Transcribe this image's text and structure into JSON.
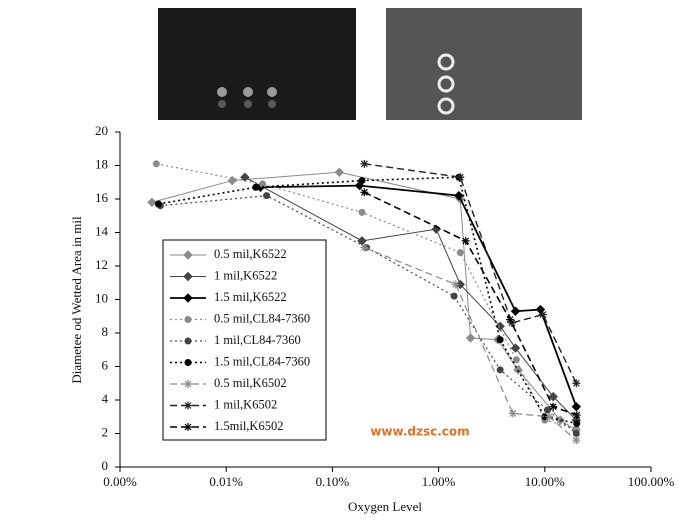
{
  "chart_data": {
    "type": "line",
    "xlabel": "Oxygen Level",
    "ylabel": "Diametee od Wetted Area in mil",
    "xscale": "log",
    "xlim": [
      0.001,
      100
    ],
    "xticks": [
      {
        "value": 0.001,
        "label": "0.00%"
      },
      {
        "value": 0.01,
        "label": "0.01%"
      },
      {
        "value": 0.1,
        "label": "0.10%"
      },
      {
        "value": 1,
        "label": "1.00%"
      },
      {
        "value": 10,
        "label": "10.00%"
      },
      {
        "value": 100,
        "label": "100.00%"
      }
    ],
    "ylim": [
      0,
      20
    ],
    "yticks": [
      0,
      2,
      4,
      6,
      8,
      10,
      12,
      14,
      16,
      18,
      20
    ],
    "grid": false,
    "legend": "lower left",
    "watermark": "www.dzsc.com",
    "series": [
      {
        "name": "0.5 mil,K6522",
        "color": "#8a8a8a",
        "dash": "solid",
        "marker": "diamond",
        "width": 1,
        "x": [
          0.002,
          0.0114,
          0.116,
          1.6,
          2.0,
          3.6,
          5.6,
          14,
          19.7
        ],
        "values": [
          15.8,
          17.1,
          17.6,
          16.0,
          7.7,
          7.6,
          5.8,
          2.8,
          2.2
        ]
      },
      {
        "name": "1 mil,K6522",
        "color": "#444444",
        "dash": "solid",
        "marker": "diamond",
        "width": 1,
        "x": [
          0.015,
          0.19,
          0.95,
          1.6,
          3.8,
          5.3,
          12,
          19.8
        ],
        "values": [
          17.3,
          13.5,
          14.2,
          10.9,
          8.4,
          7.1,
          4.2,
          2.8
        ]
      },
      {
        "name": "1.5 mil,K6522",
        "color": "#000000",
        "dash": "solid",
        "marker": "diamond",
        "width": 1.8,
        "x": [
          0.021,
          0.18,
          1.55,
          5.3,
          9.1,
          19.8
        ],
        "values": [
          16.7,
          16.8,
          16.2,
          9.3,
          9.4,
          3.6
        ]
      },
      {
        "name": "0.5 mil,CL84-7360",
        "color": "#8a8a8a",
        "dash": "dotted",
        "marker": "circle",
        "width": 1.2,
        "x": [
          0.0022,
          0.022,
          0.19,
          1.6,
          5.4,
          10,
          19.8
        ],
        "values": [
          18.1,
          16.9,
          15.2,
          12.8,
          6.4,
          2.8,
          2.3
        ]
      },
      {
        "name": "1 mil,CL84-7360",
        "color": "#444444",
        "dash": "dotted",
        "marker": "circle",
        "width": 1.2,
        "x": [
          0.0024,
          0.024,
          0.21,
          1.4,
          3.8,
          10.6,
          19.8
        ],
        "values": [
          15.6,
          16.2,
          13.1,
          10.2,
          5.8,
          3.4,
          2.0
        ]
      },
      {
        "name": "1.5 mil,CL84-7360",
        "color": "#000000",
        "dash": "dotted",
        "marker": "circle",
        "width": 1.6,
        "x": [
          0.0023,
          0.019,
          0.19,
          1.55,
          3.8,
          10,
          20
        ],
        "values": [
          15.7,
          16.7,
          17.1,
          17.3,
          7.6,
          3.0,
          2.6
        ]
      },
      {
        "name": "0.5 mil,K6502",
        "color": "#8a8a8a",
        "dash": "dashed",
        "marker": "star",
        "width": 1.2,
        "x": [
          0.2,
          1.45,
          5,
          11,
          19.8
        ],
        "values": [
          13.1,
          10.9,
          3.2,
          3.0,
          1.6
        ]
      },
      {
        "name": "1 mil,K6502",
        "color": "#222222",
        "dash": "dashed",
        "marker": "star",
        "width": 1.4,
        "x": [
          0.2,
          1.6,
          4.9,
          9.6,
          19.8
        ],
        "values": [
          18.1,
          17.3,
          8.6,
          9.1,
          5.0
        ]
      },
      {
        "name": "1.5mil,K6502",
        "color": "#000000",
        "dash": "dashed",
        "marker": "star",
        "width": 1.6,
        "x": [
          0.2,
          1.8,
          4.7,
          12,
          20
        ],
        "values": [
          16.4,
          13.5,
          8.8,
          3.6,
          3.1
        ]
      }
    ]
  }
}
